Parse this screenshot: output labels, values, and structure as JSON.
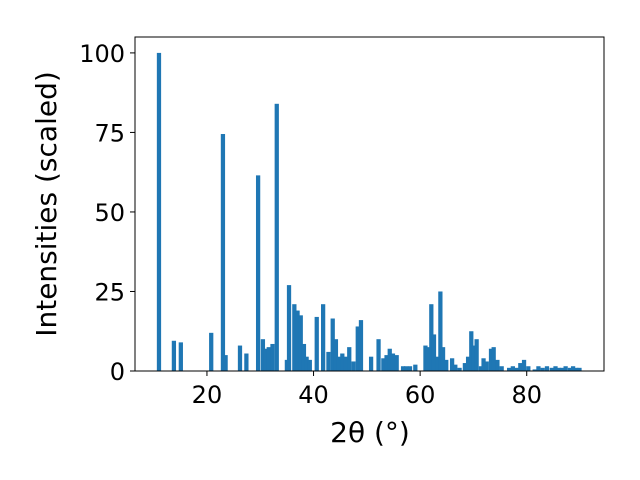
{
  "chart_data": {
    "type": "bar",
    "xlabel": "2θ (°)",
    "ylabel": "Intensities (scaled)",
    "xlim": [
      6.5,
      94.5
    ],
    "ylim": [
      0,
      105
    ],
    "bar_width": 0.8,
    "bar_color": "#1f77b4",
    "grid": false,
    "xticks": [
      20,
      40,
      60,
      80
    ],
    "yticks": [
      0,
      25,
      50,
      75,
      100
    ],
    "series": [
      {
        "x": [
          11.0,
          13.8,
          15.1,
          20.8,
          23.0,
          23.5,
          26.2,
          27.4,
          29.6,
          30.5,
          31.0,
          31.6,
          32.3,
          33.1,
          35.0,
          35.4,
          36.4,
          37.0,
          37.6,
          38.2,
          38.7,
          39.3,
          40.6,
          41.8,
          42.8,
          43.6,
          44.2,
          44.8,
          45.4,
          46.1,
          46.7,
          47.5,
          48.3,
          48.9,
          50.8,
          52.2,
          53.1,
          53.7,
          54.3,
          54.9,
          55.6,
          56.8,
          57.4,
          58.1,
          59.1,
          61.0,
          61.5,
          62.1,
          62.6,
          63.3,
          63.8,
          64.3,
          64.9,
          66.0,
          66.6,
          67.4,
          68.4,
          69.0,
          69.6,
          70.1,
          70.6,
          71.4,
          71.9,
          72.5,
          73.3,
          73.8,
          74.5,
          75.3,
          76.7,
          77.4,
          78.2,
          78.8,
          79.5,
          80.3,
          81.5,
          82.2,
          83.0,
          83.8,
          84.7,
          85.4,
          86.0,
          86.6,
          87.3,
          88.1,
          88.7,
          89.3,
          89.9
        ],
        "y": [
          100.0,
          9.5,
          9.0,
          12.0,
          74.5,
          5.0,
          8.0,
          5.5,
          61.5,
          10.0,
          7.0,
          7.5,
          8.5,
          84.0,
          3.5,
          27.0,
          21.0,
          19.0,
          17.5,
          8.5,
          4.5,
          3.5,
          17.0,
          21.0,
          6.0,
          16.5,
          10.0,
          4.5,
          5.5,
          4.5,
          7.5,
          3.0,
          14.0,
          16.0,
          4.5,
          10.0,
          4.0,
          5.0,
          7.0,
          5.5,
          5.0,
          1.5,
          1.5,
          1.5,
          2.0,
          8.0,
          7.5,
          21.0,
          11.5,
          4.5,
          25.0,
          7.5,
          3.5,
          4.0,
          2.0,
          1.0,
          2.5,
          4.5,
          12.5,
          8.0,
          10.0,
          1.5,
          4.0,
          3.0,
          7.0,
          7.5,
          3.5,
          1.5,
          1.0,
          1.5,
          1.0,
          2.5,
          3.5,
          1.5,
          0.5,
          1.5,
          1.0,
          1.5,
          1.0,
          1.5,
          1.0,
          1.0,
          1.5,
          1.0,
          1.5,
          1.0,
          1.0
        ]
      }
    ]
  }
}
